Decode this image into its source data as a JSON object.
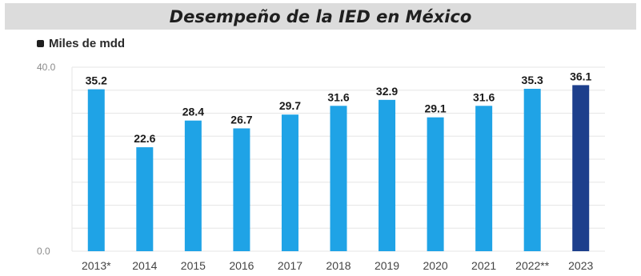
{
  "title": "Desempeño de la IED en México",
  "chart_data": {
    "type": "bar",
    "title": "Desempeño de la IED en México",
    "legend": [
      "Miles de mdd"
    ],
    "ylabel": "",
    "xlabel": "",
    "categories": [
      "2013*",
      "2014",
      "2015",
      "2016",
      "2017",
      "2018",
      "2019",
      "2020",
      "2021",
      "2022**",
      "2023"
    ],
    "values": [
      35.2,
      22.6,
      28.4,
      26.7,
      29.7,
      31.6,
      32.9,
      29.1,
      31.6,
      35.3,
      36.1
    ],
    "value_labels": [
      "35.2",
      "22.6",
      "28.4",
      "26.7",
      "29.7",
      "31.6",
      "32.9",
      "29.1",
      "31.6",
      "35.3",
      "36.1"
    ],
    "ylim": [
      0,
      40
    ],
    "y_ticks": [
      0,
      40
    ],
    "y_tick_labels": [
      "0.0",
      "40.0"
    ],
    "grid": true,
    "colors": {
      "bar": "#1fa3e6",
      "highlight": "#1d3f8c",
      "highlight_category": "2023",
      "grid": "#e6e6e6",
      "tick_text": "#8a8a8a",
      "label_text": "#1a1a1a"
    }
  }
}
